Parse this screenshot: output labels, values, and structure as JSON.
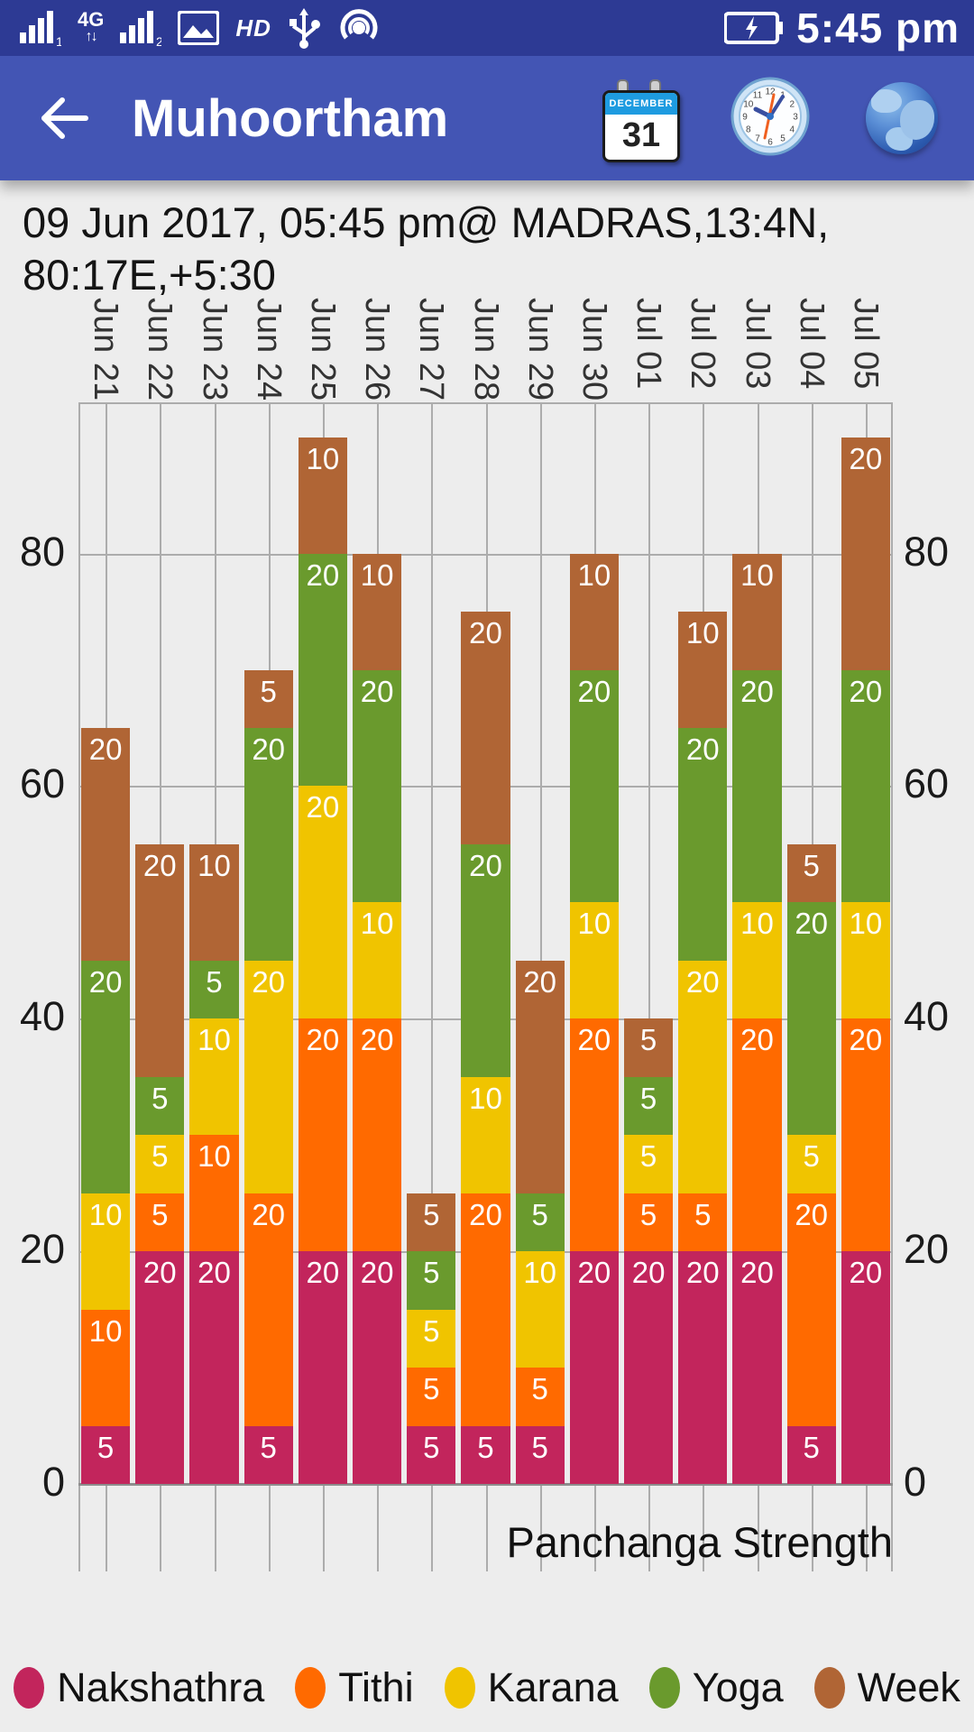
{
  "status_bar": {
    "time": "5:45 pm",
    "network_label": "4G",
    "network_arrows": "↑↓",
    "sim1_index": "1",
    "sim2_index": "2",
    "hd_label": "HD",
    "icons": [
      "signal-sim1-icon",
      "4g-updown-icon",
      "signal-sim2-icon",
      "gallery-icon",
      "hd-icon",
      "usb-icon",
      "hotspot-icon",
      "battery-charging-icon"
    ]
  },
  "header": {
    "title": "Muhoortham",
    "icons": [
      "back-arrow-icon",
      "calendar-icon",
      "clock-icon",
      "globe-icon"
    ],
    "calendar": {
      "month": "DECEMBER",
      "day": "31"
    },
    "clock_numerals": [
      "12",
      "1",
      "2",
      "3",
      "4",
      "5",
      "6",
      "7",
      "8",
      "9",
      "10",
      "11"
    ]
  },
  "info": {
    "line1": "09 Jun 2017, 05:45 pm@ MADRAS,13:4N,",
    "line2": "80:17E,+5:30"
  },
  "chart_data": {
    "type": "bar",
    "stacked": true,
    "title": "Panchanga Strength",
    "categories": [
      "Jun 21",
      "Jun 22",
      "Jun 23",
      "Jun 24",
      "Jun 25",
      "Jun 26",
      "Jun 27",
      "Jun 28",
      "Jun 29",
      "Jun 30",
      "Jul 01",
      "Jul 02",
      "Jul 03",
      "Jul 04",
      "Jul 05"
    ],
    "series": [
      {
        "name": "Nakshathra",
        "color": "#C2255C",
        "values": [
          5,
          20,
          20,
          5,
          20,
          20,
          5,
          5,
          5,
          20,
          20,
          20,
          20,
          5,
          20
        ]
      },
      {
        "name": "Tithi",
        "color": "#FF6A00",
        "values": [
          10,
          5,
          10,
          20,
          20,
          20,
          5,
          20,
          5,
          20,
          5,
          5,
          20,
          20,
          20
        ]
      },
      {
        "name": "Karana",
        "color": "#F0C400",
        "values": [
          10,
          5,
          10,
          20,
          20,
          10,
          5,
          10,
          10,
          10,
          5,
          20,
          10,
          5,
          10
        ]
      },
      {
        "name": "Yoga",
        "color": "#6A9A2D",
        "values": [
          20,
          5,
          5,
          20,
          20,
          20,
          5,
          20,
          5,
          20,
          5,
          20,
          20,
          20,
          20
        ]
      },
      {
        "name": "Week",
        "color": "#B06535",
        "values": [
          20,
          20,
          10,
          5,
          10,
          10,
          5,
          20,
          20,
          10,
          5,
          10,
          10,
          5,
          20
        ]
      }
    ],
    "totals": [
      65,
      55,
      55,
      70,
      90,
      80,
      25,
      75,
      45,
      80,
      40,
      75,
      80,
      55,
      90
    ],
    "y_ticks": [
      0,
      20,
      40,
      60,
      80
    ],
    "ylim": [
      0,
      93
    ],
    "grid": true,
    "bar_value_labels": true,
    "legend_position": "bottom",
    "background": "#EDEDED"
  }
}
